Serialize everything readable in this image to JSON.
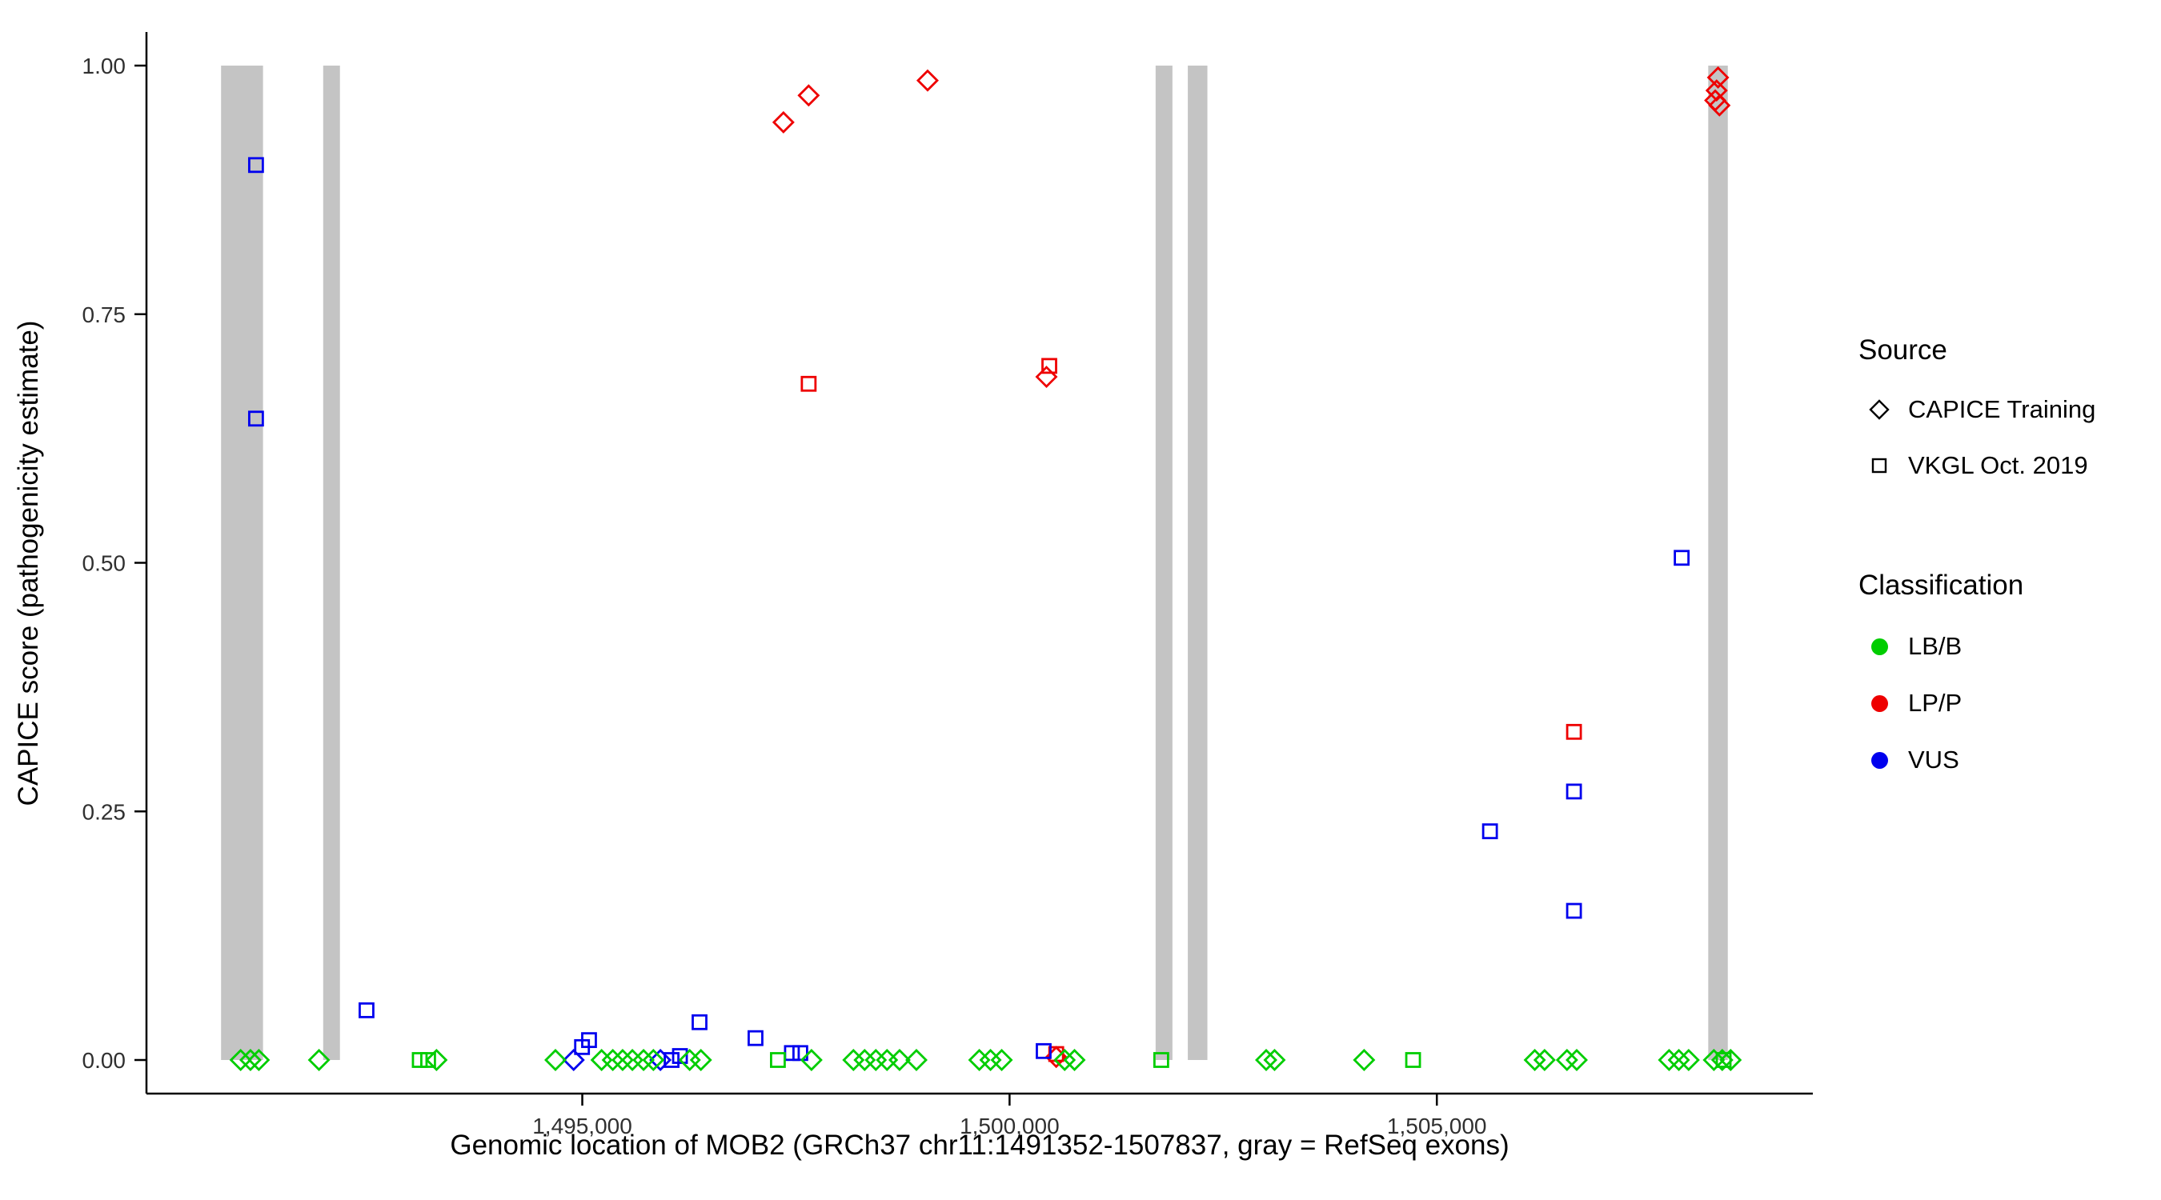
{
  "chart_data": {
    "type": "scatter",
    "xlabel": "Genomic location of MOB2 (GRCh37 chr11:1491352-1507837, gray = RefSeq exons)",
    "ylabel": "CAPICE score (pathogenicity estimate)",
    "x_range": [
      1489900,
      1509400
    ],
    "y_range": [
      0,
      1
    ],
    "grid": "off",
    "legend_position": "right",
    "x_ticks": [
      {
        "value": 1495000,
        "label": "1,495,000"
      },
      {
        "value": 1500000,
        "label": "1,500,000"
      },
      {
        "value": 1505000,
        "label": "1,505,000"
      }
    ],
    "y_ticks": [
      {
        "value": 0,
        "label": "0.00"
      },
      {
        "value": 0.25,
        "label": "0.25"
      },
      {
        "value": 0.5,
        "label": "0.50"
      },
      {
        "value": 0.75,
        "label": "0.75"
      },
      {
        "value": 1,
        "label": "1.00"
      }
    ],
    "exons": [
      [
        1490773,
        1491264
      ],
      [
        1491968,
        1492164
      ],
      [
        1501709,
        1501906
      ],
      [
        1502086,
        1502315
      ],
      [
        1508176,
        1508405
      ]
    ],
    "shape_by_source": {
      "CAPICE Training": "diamond",
      "VKGL Oct. 2019": "square"
    },
    "points": [
      {
        "x": 1497354,
        "y": 0.943,
        "source": "CAPICE Training",
        "classification": "LP/P"
      },
      {
        "x": 1497649,
        "y": 0.97,
        "source": "CAPICE Training",
        "classification": "LP/P"
      },
      {
        "x": 1499041,
        "y": 0.985,
        "source": "CAPICE Training",
        "classification": "LP/P"
      },
      {
        "x": 1497649,
        "y": 0.68,
        "source": "VKGL Oct. 2019",
        "classification": "LP/P"
      },
      {
        "x": 1500465,
        "y": 0.698,
        "source": "VKGL Oct. 2019",
        "classification": "LP/P"
      },
      {
        "x": 1500432,
        "y": 0.687,
        "source": "CAPICE Training",
        "classification": "LP/P"
      },
      {
        "x": 1508291,
        "y": 0.988,
        "source": "CAPICE Training",
        "classification": "LP/P"
      },
      {
        "x": 1508274,
        "y": 0.975,
        "source": "CAPICE Training",
        "classification": "LP/P"
      },
      {
        "x": 1508258,
        "y": 0.965,
        "source": "CAPICE Training",
        "classification": "LP/P"
      },
      {
        "x": 1508307,
        "y": 0.96,
        "source": "CAPICE Training",
        "classification": "LP/P"
      },
      {
        "x": 1506605,
        "y": 0.33,
        "source": "VKGL Oct. 2019",
        "classification": "LP/P"
      },
      {
        "x": 1500546,
        "y": 0.006,
        "source": "VKGL Oct. 2019",
        "classification": "LP/P"
      },
      {
        "x": 1500546,
        "y": 0.003,
        "source": "CAPICE Training",
        "classification": "LP/P"
      },
      {
        "x": 1491182,
        "y": 0.9,
        "source": "VKGL Oct. 2019",
        "classification": "VUS"
      },
      {
        "x": 1491182,
        "y": 0.645,
        "source": "VKGL Oct. 2019",
        "classification": "VUS"
      },
      {
        "x": 1492475,
        "y": 0.05,
        "source": "VKGL Oct. 2019",
        "classification": "VUS"
      },
      {
        "x": 1496372,
        "y": 0.038,
        "source": "VKGL Oct. 2019",
        "classification": "VUS"
      },
      {
        "x": 1497027,
        "y": 0.022,
        "source": "VKGL Oct. 2019",
        "classification": "VUS"
      },
      {
        "x": 1505622,
        "y": 0.23,
        "source": "VKGL Oct. 2019",
        "classification": "VUS"
      },
      {
        "x": 1506605,
        "y": 0.27,
        "source": "VKGL Oct. 2019",
        "classification": "VUS"
      },
      {
        "x": 1506605,
        "y": 0.15,
        "source": "VKGL Oct. 2019",
        "classification": "VUS"
      },
      {
        "x": 1507865,
        "y": 0.505,
        "source": "VKGL Oct. 2019",
        "classification": "VUS"
      },
      {
        "x": 1494899,
        "y": 0.0,
        "source": "CAPICE Training",
        "classification": "VUS"
      },
      {
        "x": 1494997,
        "y": 0.013,
        "source": "VKGL Oct. 2019",
        "classification": "VUS"
      },
      {
        "x": 1495079,
        "y": 0.02,
        "source": "VKGL Oct. 2019",
        "classification": "VUS"
      },
      {
        "x": 1495914,
        "y": 0.0,
        "source": "CAPICE Training",
        "classification": "VUS"
      },
      {
        "x": 1496045,
        "y": 0.0,
        "source": "VKGL Oct. 2019",
        "classification": "VUS"
      },
      {
        "x": 1496143,
        "y": 0.004,
        "source": "VKGL Oct. 2019",
        "classification": "VUS"
      },
      {
        "x": 1497453,
        "y": 0.007,
        "source": "VKGL Oct. 2019",
        "classification": "VUS"
      },
      {
        "x": 1497551,
        "y": 0.007,
        "source": "VKGL Oct. 2019",
        "classification": "VUS"
      },
      {
        "x": 1500399,
        "y": 0.009,
        "source": "VKGL Oct. 2019",
        "classification": "VUS"
      },
      {
        "x": 1493098,
        "y": 0,
        "source": "VKGL Oct. 2019",
        "classification": "LB/B"
      },
      {
        "x": 1493196,
        "y": 0,
        "source": "VKGL Oct. 2019",
        "classification": "LB/B"
      },
      {
        "x": 1497289,
        "y": 0,
        "source": "VKGL Oct. 2019",
        "classification": "LB/B"
      },
      {
        "x": 1501775,
        "y": 0,
        "source": "VKGL Oct. 2019",
        "classification": "LB/B"
      },
      {
        "x": 1504722,
        "y": 0,
        "source": "VKGL Oct. 2019",
        "classification": "LB/B"
      },
      {
        "x": 1508356,
        "y": 0,
        "source": "VKGL Oct. 2019",
        "classification": "LB/B"
      },
      {
        "x": 1491002,
        "y": 0,
        "source": "CAPICE Training",
        "classification": "LB/B"
      },
      {
        "x": 1491117,
        "y": 0,
        "source": "CAPICE Training",
        "classification": "LB/B"
      },
      {
        "x": 1491215,
        "y": 0,
        "source": "CAPICE Training",
        "classification": "LB/B"
      },
      {
        "x": 1491919,
        "y": 0,
        "source": "CAPICE Training",
        "classification": "LB/B"
      },
      {
        "x": 1493294,
        "y": 0,
        "source": "CAPICE Training",
        "classification": "LB/B"
      },
      {
        "x": 1494686,
        "y": 0,
        "source": "CAPICE Training",
        "classification": "LB/B"
      },
      {
        "x": 1495226,
        "y": 0,
        "source": "CAPICE Training",
        "classification": "LB/B"
      },
      {
        "x": 1495357,
        "y": 0,
        "source": "CAPICE Training",
        "classification": "LB/B"
      },
      {
        "x": 1495472,
        "y": 0,
        "source": "CAPICE Training",
        "classification": "LB/B"
      },
      {
        "x": 1495586,
        "y": 0,
        "source": "CAPICE Training",
        "classification": "LB/B"
      },
      {
        "x": 1495717,
        "y": 0,
        "source": "CAPICE Training",
        "classification": "LB/B"
      },
      {
        "x": 1495832,
        "y": 0,
        "source": "CAPICE Training",
        "classification": "LB/B"
      },
      {
        "x": 1496257,
        "y": 0,
        "source": "CAPICE Training",
        "classification": "LB/B"
      },
      {
        "x": 1496388,
        "y": 0,
        "source": "CAPICE Training",
        "classification": "LB/B"
      },
      {
        "x": 1497682,
        "y": 0,
        "source": "CAPICE Training",
        "classification": "LB/B"
      },
      {
        "x": 1498173,
        "y": 0,
        "source": "CAPICE Training",
        "classification": "LB/B"
      },
      {
        "x": 1498304,
        "y": 0,
        "source": "CAPICE Training",
        "classification": "LB/B"
      },
      {
        "x": 1498435,
        "y": 0,
        "source": "CAPICE Training",
        "classification": "LB/B"
      },
      {
        "x": 1498566,
        "y": 0,
        "source": "CAPICE Training",
        "classification": "LB/B"
      },
      {
        "x": 1498713,
        "y": 0,
        "source": "CAPICE Training",
        "classification": "LB/B"
      },
      {
        "x": 1498910,
        "y": 0,
        "source": "CAPICE Training",
        "classification": "LB/B"
      },
      {
        "x": 1499646,
        "y": 0,
        "source": "CAPICE Training",
        "classification": "LB/B"
      },
      {
        "x": 1499777,
        "y": 0,
        "source": "CAPICE Training",
        "classification": "LB/B"
      },
      {
        "x": 1499908,
        "y": 0,
        "source": "CAPICE Training",
        "classification": "LB/B"
      },
      {
        "x": 1500645,
        "y": 0,
        "source": "CAPICE Training",
        "classification": "LB/B"
      },
      {
        "x": 1500760,
        "y": 0,
        "source": "CAPICE Training",
        "classification": "LB/B"
      },
      {
        "x": 1503003,
        "y": 0,
        "source": "CAPICE Training",
        "classification": "LB/B"
      },
      {
        "x": 1503101,
        "y": 0,
        "source": "CAPICE Training",
        "classification": "LB/B"
      },
      {
        "x": 1504149,
        "y": 0,
        "source": "CAPICE Training",
        "classification": "LB/B"
      },
      {
        "x": 1506146,
        "y": 0,
        "source": "CAPICE Training",
        "classification": "LB/B"
      },
      {
        "x": 1506261,
        "y": 0,
        "source": "CAPICE Training",
        "classification": "LB/B"
      },
      {
        "x": 1506523,
        "y": 0,
        "source": "CAPICE Training",
        "classification": "LB/B"
      },
      {
        "x": 1506637,
        "y": 0,
        "source": "CAPICE Training",
        "classification": "LB/B"
      },
      {
        "x": 1507718,
        "y": 0,
        "source": "CAPICE Training",
        "classification": "LB/B"
      },
      {
        "x": 1507832,
        "y": 0,
        "source": "CAPICE Training",
        "classification": "LB/B"
      },
      {
        "x": 1507947,
        "y": 0,
        "source": "CAPICE Training",
        "classification": "LB/B"
      },
      {
        "x": 1508242,
        "y": 0,
        "source": "CAPICE Training",
        "classification": "LB/B"
      },
      {
        "x": 1508340,
        "y": 0,
        "source": "CAPICE Training",
        "classification": "LB/B"
      },
      {
        "x": 1508438,
        "y": 0,
        "source": "CAPICE Training",
        "classification": "LB/B"
      }
    ]
  },
  "legend": {
    "source": {
      "title": "Source",
      "items": [
        {
          "label": "CAPICE Training",
          "shape": "diamond"
        },
        {
          "label": "VKGL Oct. 2019",
          "shape": "square"
        }
      ]
    },
    "classification": {
      "title": "Classification",
      "items": [
        {
          "label": "LB/B"
        },
        {
          "label": "LP/P"
        },
        {
          "label": "VUS"
        }
      ]
    }
  },
  "colors": {
    "classification": {
      "LB/B": "#00CD00",
      "LP/P": "#EE0000",
      "VUS": "#0000EE"
    },
    "exon": "#C4C4C4",
    "axis": "#000000",
    "tick_text": "#303030"
  }
}
